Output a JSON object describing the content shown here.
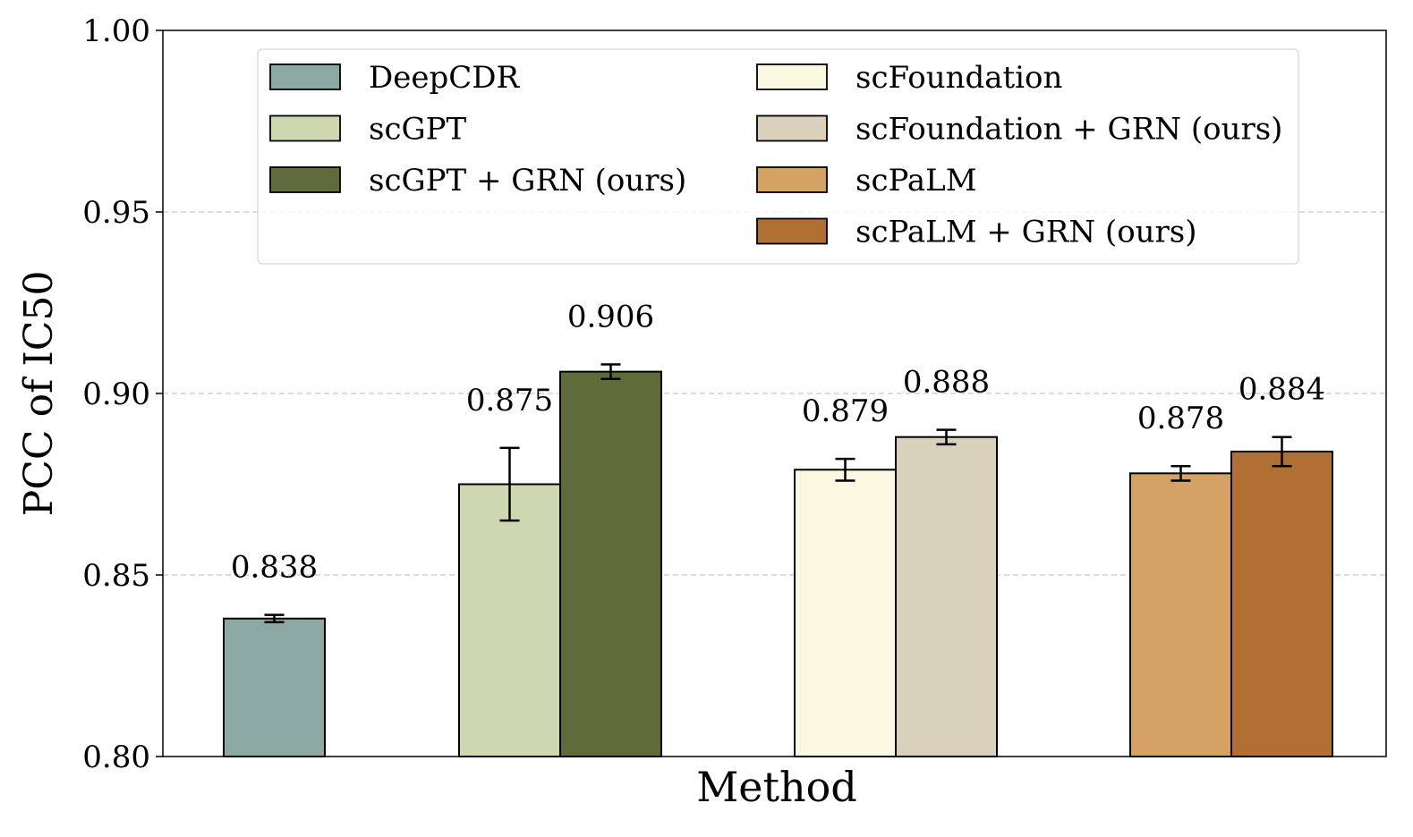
{
  "chart_data": {
    "type": "bar",
    "title": "",
    "xlabel": "Method",
    "ylabel": "PCC of IC50",
    "ylim": [
      0.8,
      1.0
    ],
    "yticks": [
      "0.80",
      "0.85",
      "0.90",
      "0.95",
      "1.00"
    ],
    "grid": "horizontal dashed",
    "legend_placement": "top-center",
    "series": [
      {
        "name": "DeepCDR",
        "value": 0.838,
        "error": 0.001,
        "label": "0.838",
        "color": "#8ba8a3"
      },
      {
        "name": "scGPT",
        "value": 0.875,
        "error": 0.01,
        "label": "0.875",
        "color": "#cfd7b1"
      },
      {
        "name": "scGPT + GRN (ours)",
        "value": 0.906,
        "error": 0.002,
        "label": "0.906",
        "color": "#5f6b3a"
      },
      {
        "name": "scFoundation",
        "value": 0.879,
        "error": 0.003,
        "label": "0.879",
        "color": "#fbf8e1"
      },
      {
        "name": "scFoundation + GRN (ours)",
        "value": 0.888,
        "error": 0.002,
        "label": "0.888",
        "color": "#d9d1bc"
      },
      {
        "name": "scPaLM",
        "value": 0.878,
        "error": 0.002,
        "label": "0.878",
        "color": "#d4a265"
      },
      {
        "name": "scPaLM + GRN (ours)",
        "value": 0.884,
        "error": 0.004,
        "label": "0.884",
        "color": "#b06f33"
      }
    ]
  }
}
